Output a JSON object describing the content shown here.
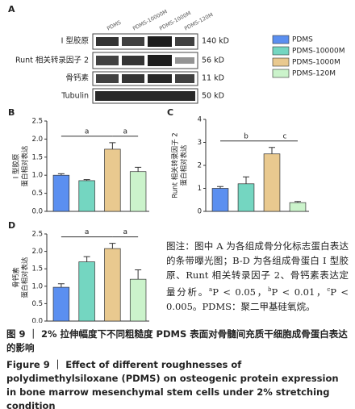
{
  "panel_a": {
    "label": "A",
    "lanes": [
      "PDMS",
      "PDMS-10000M",
      "PDMS-1000M",
      "PDMS-120M"
    ],
    "rows": [
      {
        "name": "Ⅰ 型胶原",
        "size": "140 kD"
      },
      {
        "name": "Runt 相关转录因子 2",
        "size": "56 kD"
      },
      {
        "name": "骨钙素",
        "size": "11 kD"
      },
      {
        "name": "Tubulin",
        "size": "50 kD"
      }
    ]
  },
  "legend": [
    {
      "name": "PDMS",
      "color": "#5b8ff0"
    },
    {
      "name": "PDMS-10000M",
      "color": "#74d6c1"
    },
    {
      "name": "PDMS-1000M",
      "color": "#e9c98f"
    },
    {
      "name": "PDMS-120M",
      "color": "#cbf3cb"
    }
  ],
  "chart_data": [
    {
      "type": "bar",
      "label": "B",
      "y_label": [
        "Ⅰ 型胶原",
        "蛋白相对表达"
      ],
      "values": [
        1.0,
        0.85,
        1.72,
        1.1
      ],
      "errors": [
        0.04,
        0.03,
        0.18,
        0.12
      ],
      "colors": [
        "#5b8ff0",
        "#74d6c1",
        "#e9c98f",
        "#cbf3cb"
      ],
      "ylim": [
        0,
        2.5
      ],
      "yticks": [
        {
          "value": 0,
          "label": "0.0"
        },
        {
          "value": 0.5,
          "label": "0.5"
        },
        {
          "value": 1,
          "label": "1.0"
        },
        {
          "value": 1.5,
          "label": "1.5"
        },
        {
          "value": 2,
          "label": "2.0"
        },
        {
          "value": 2.5,
          "label": "2.5"
        }
      ],
      "annotations": [
        {
          "label": "a",
          "from": 0,
          "to": 2
        },
        {
          "label": "a",
          "from": 2,
          "to": 3
        }
      ]
    },
    {
      "type": "bar",
      "label": "C",
      "y_label": [
        "Runt 相关转录因子 2",
        "蛋白相对表达"
      ],
      "values": [
        1.0,
        1.2,
        2.5,
        0.38
      ],
      "errors": [
        0.08,
        0.3,
        0.28,
        0.05
      ],
      "colors": [
        "#5b8ff0",
        "#74d6c1",
        "#e9c98f",
        "#cbf3cb"
      ],
      "ylim": [
        0,
        4
      ],
      "yticks": [
        0,
        1,
        2,
        3,
        4
      ],
      "annotations": [
        {
          "label": "b",
          "from": 0,
          "to": 2
        },
        {
          "label": "c",
          "from": 2,
          "to": 3
        }
      ]
    },
    {
      "type": "bar",
      "label": "D",
      "y_label": [
        "骨钙素",
        "蛋白相对表达"
      ],
      "values": [
        0.97,
        1.7,
        2.08,
        1.2
      ],
      "errors": [
        0.1,
        0.15,
        0.15,
        0.27
      ],
      "colors": [
        "#5b8ff0",
        "#74d6c1",
        "#e9c98f",
        "#cbf3cb"
      ],
      "ylim": [
        0,
        2.5
      ],
      "yticks": [
        {
          "value": 0,
          "label": "0.0"
        },
        {
          "value": 0.5,
          "label": "0.5"
        },
        {
          "value": 1,
          "label": "1.0"
        },
        {
          "value": 1.5,
          "label": "1.5"
        },
        {
          "value": 2,
          "label": "2.0"
        },
        {
          "value": 2.5,
          "label": "2.5"
        }
      ],
      "annotations": [
        {
          "label": "a",
          "from": 0,
          "to": 2
        },
        {
          "label": "a",
          "from": 2,
          "to": 3
        }
      ]
    }
  ],
  "note": {
    "intro": "图注：图中 A 为各组成骨分化标志蛋白表达的条带曝光图；B-D 为各组成骨蛋白 Ⅰ 型胶原、Runt 相关转录因子 2、骨钙素表达定量分析。",
    "thresholds": [
      {
        "mark": "a",
        "text": "P < 0.05，"
      },
      {
        "mark": "b",
        "text": "P < 0.01，"
      },
      {
        "mark": "c",
        "text": "P < 0.005。"
      }
    ],
    "outro": "PDMS：聚二甲基硅氧烷。"
  },
  "caption": {
    "zh_label": "图 9 ｜",
    "zh": "2% 拉伸幅度下不同粗糙度 PDMS 表面对骨髓间充质干细胞成骨蛋白表达的影响",
    "en_label": "Figure 9 ｜",
    "en": "Effect of different roughnesses of polydimethylsiloxane (PDMS) on osteogenic protein expression in bone marrow mesenchymal stem cells under 2% stretching condition"
  }
}
